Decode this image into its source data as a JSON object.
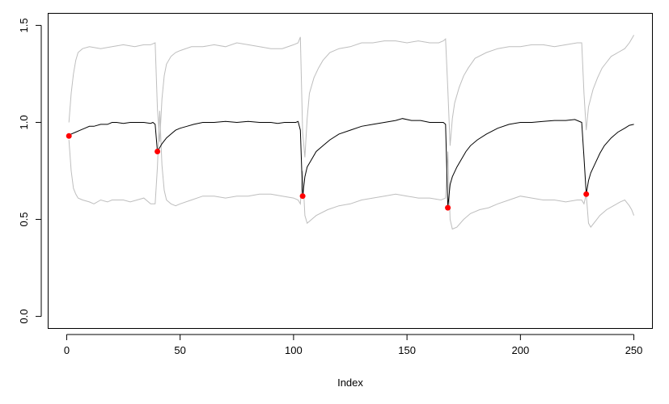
{
  "chart_data": {
    "type": "line",
    "title": "",
    "xlabel": "Index",
    "ylabel": "",
    "xlim": [
      -8,
      258
    ],
    "ylim": [
      -0.06,
      1.56
    ],
    "grid": false,
    "legend": "none",
    "x_ticks": [
      {
        "value": 0,
        "label": "0"
      },
      {
        "value": 50,
        "label": "50"
      },
      {
        "value": 100,
        "label": "100"
      },
      {
        "value": 150,
        "label": "150"
      },
      {
        "value": 200,
        "label": "200"
      },
      {
        "value": 250,
        "label": "250"
      }
    ],
    "y_ticks": [
      {
        "value": 0.0,
        "label": "0.0"
      },
      {
        "value": 0.5,
        "label": "0.5"
      },
      {
        "value": 1.0,
        "label": "1.0"
      },
      {
        "value": 1.5,
        "label": "1.5"
      }
    ],
    "colors": {
      "mean_line": "#000000",
      "band_lines": "#bebebe",
      "points": "#ff0000",
      "axes": "#000000"
    },
    "series": [
      {
        "role": "mean",
        "points": [
          [
            1,
            0.93
          ],
          [
            2,
            0.94
          ],
          [
            4,
            0.95
          ],
          [
            6,
            0.96
          ],
          [
            8,
            0.97
          ],
          [
            10,
            0.98
          ],
          [
            12,
            0.98
          ],
          [
            15,
            0.99
          ],
          [
            18,
            0.99
          ],
          [
            20,
            1.0
          ],
          [
            22,
            1.0
          ],
          [
            25,
            0.995
          ],
          [
            28,
            1.0
          ],
          [
            31,
            1.0
          ],
          [
            34,
            1.0
          ],
          [
            37,
            0.995
          ],
          [
            38,
            1.0
          ],
          [
            39,
            0.99
          ],
          [
            40,
            0.85
          ],
          [
            41,
            0.87
          ],
          [
            42,
            0.89
          ],
          [
            44,
            0.92
          ],
          [
            46,
            0.94
          ],
          [
            48,
            0.96
          ],
          [
            50,
            0.97
          ],
          [
            53,
            0.98
          ],
          [
            56,
            0.99
          ],
          [
            60,
            1.0
          ],
          [
            65,
            1.0
          ],
          [
            70,
            1.005
          ],
          [
            75,
            1.0
          ],
          [
            80,
            1.005
          ],
          [
            85,
            1.0
          ],
          [
            90,
            1.0
          ],
          [
            93,
            0.995
          ],
          [
            96,
            1.0
          ],
          [
            99,
            1.0
          ],
          [
            101,
            1.0
          ],
          [
            102,
            1.005
          ],
          [
            103,
            0.96
          ],
          [
            104,
            0.62
          ],
          [
            105,
            0.72
          ],
          [
            106,
            0.77
          ],
          [
            108,
            0.81
          ],
          [
            110,
            0.85
          ],
          [
            113,
            0.88
          ],
          [
            116,
            0.91
          ],
          [
            120,
            0.94
          ],
          [
            125,
            0.96
          ],
          [
            130,
            0.98
          ],
          [
            135,
            0.99
          ],
          [
            140,
            1.0
          ],
          [
            145,
            1.01
          ],
          [
            148,
            1.02
          ],
          [
            152,
            1.01
          ],
          [
            156,
            1.01
          ],
          [
            160,
            1.0
          ],
          [
            163,
            1.0
          ],
          [
            166,
            1.0
          ],
          [
            167,
            0.99
          ],
          [
            168,
            0.56
          ],
          [
            169,
            0.68
          ],
          [
            170,
            0.72
          ],
          [
            172,
            0.77
          ],
          [
            174,
            0.81
          ],
          [
            176,
            0.85
          ],
          [
            178,
            0.88
          ],
          [
            181,
            0.91
          ],
          [
            185,
            0.94
          ],
          [
            190,
            0.97
          ],
          [
            195,
            0.99
          ],
          [
            200,
            1.0
          ],
          [
            205,
            1.0
          ],
          [
            210,
            1.005
          ],
          [
            215,
            1.01
          ],
          [
            220,
            1.01
          ],
          [
            224,
            1.015
          ],
          [
            227,
            1.0
          ],
          [
            228,
            0.82
          ],
          [
            229,
            0.63
          ],
          [
            230,
            0.7
          ],
          [
            231,
            0.74
          ],
          [
            233,
            0.79
          ],
          [
            235,
            0.84
          ],
          [
            237,
            0.88
          ],
          [
            240,
            0.92
          ],
          [
            243,
            0.95
          ],
          [
            246,
            0.97
          ],
          [
            248,
            0.985
          ],
          [
            250,
            0.99
          ]
        ]
      },
      {
        "role": "upper",
        "points": [
          [
            1,
            1.0
          ],
          [
            2,
            1.15
          ],
          [
            3,
            1.25
          ],
          [
            4,
            1.32
          ],
          [
            5,
            1.36
          ],
          [
            7,
            1.38
          ],
          [
            10,
            1.39
          ],
          [
            15,
            1.38
          ],
          [
            20,
            1.39
          ],
          [
            25,
            1.4
          ],
          [
            30,
            1.39
          ],
          [
            34,
            1.4
          ],
          [
            37,
            1.4
          ],
          [
            39,
            1.41
          ],
          [
            40,
            1.07
          ],
          [
            41,
            0.9
          ],
          [
            42,
            1.12
          ],
          [
            43,
            1.24
          ],
          [
            44,
            1.3
          ],
          [
            46,
            1.34
          ],
          [
            48,
            1.36
          ],
          [
            50,
            1.37
          ],
          [
            55,
            1.39
          ],
          [
            60,
            1.39
          ],
          [
            65,
            1.4
          ],
          [
            70,
            1.39
          ],
          [
            75,
            1.41
          ],
          [
            80,
            1.4
          ],
          [
            85,
            1.39
          ],
          [
            90,
            1.38
          ],
          [
            95,
            1.38
          ],
          [
            100,
            1.4
          ],
          [
            102,
            1.41
          ],
          [
            103,
            1.44
          ],
          [
            104,
            0.95
          ],
          [
            105,
            0.82
          ],
          [
            106,
            1.02
          ],
          [
            107,
            1.15
          ],
          [
            109,
            1.23
          ],
          [
            111,
            1.28
          ],
          [
            113,
            1.32
          ],
          [
            116,
            1.36
          ],
          [
            120,
            1.38
          ],
          [
            125,
            1.39
          ],
          [
            130,
            1.41
          ],
          [
            135,
            1.41
          ],
          [
            140,
            1.42
          ],
          [
            145,
            1.42
          ],
          [
            150,
            1.41
          ],
          [
            155,
            1.42
          ],
          [
            160,
            1.41
          ],
          [
            164,
            1.41
          ],
          [
            166,
            1.42
          ],
          [
            167,
            1.43
          ],
          [
            168,
            1.17
          ],
          [
            169,
            0.88
          ],
          [
            170,
            1.02
          ],
          [
            171,
            1.1
          ],
          [
            173,
            1.18
          ],
          [
            175,
            1.24
          ],
          [
            177,
            1.28
          ],
          [
            180,
            1.33
          ],
          [
            185,
            1.36
          ],
          [
            190,
            1.38
          ],
          [
            195,
            1.39
          ],
          [
            200,
            1.39
          ],
          [
            205,
            1.4
          ],
          [
            210,
            1.4
          ],
          [
            215,
            1.39
          ],
          [
            220,
            1.4
          ],
          [
            225,
            1.41
          ],
          [
            227,
            1.41
          ],
          [
            228,
            1.15
          ],
          [
            229,
            0.96
          ],
          [
            230,
            1.08
          ],
          [
            232,
            1.17
          ],
          [
            234,
            1.23
          ],
          [
            236,
            1.28
          ],
          [
            238,
            1.31
          ],
          [
            240,
            1.34
          ],
          [
            243,
            1.36
          ],
          [
            246,
            1.38
          ],
          [
            248,
            1.41
          ],
          [
            249,
            1.43
          ],
          [
            250,
            1.45
          ]
        ]
      },
      {
        "role": "lower",
        "points": [
          [
            1,
            0.91
          ],
          [
            2,
            0.75
          ],
          [
            3,
            0.66
          ],
          [
            4,
            0.63
          ],
          [
            5,
            0.61
          ],
          [
            7,
            0.6
          ],
          [
            10,
            0.59
          ],
          [
            12,
            0.58
          ],
          [
            15,
            0.6
          ],
          [
            18,
            0.59
          ],
          [
            20,
            0.6
          ],
          [
            25,
            0.6
          ],
          [
            28,
            0.59
          ],
          [
            31,
            0.6
          ],
          [
            34,
            0.61
          ],
          [
            37,
            0.58
          ],
          [
            39,
            0.58
          ],
          [
            40,
            0.77
          ],
          [
            41,
            1.06
          ],
          [
            42,
            0.78
          ],
          [
            43,
            0.65
          ],
          [
            44,
            0.6
          ],
          [
            46,
            0.58
          ],
          [
            48,
            0.57
          ],
          [
            50,
            0.58
          ],
          [
            55,
            0.6
          ],
          [
            60,
            0.62
          ],
          [
            65,
            0.62
          ],
          [
            70,
            0.61
          ],
          [
            75,
            0.62
          ],
          [
            80,
            0.62
          ],
          [
            85,
            0.63
          ],
          [
            90,
            0.63
          ],
          [
            95,
            0.62
          ],
          [
            100,
            0.61
          ],
          [
            102,
            0.6
          ],
          [
            103,
            0.58
          ],
          [
            104,
            0.75
          ],
          [
            105,
            0.52
          ],
          [
            106,
            0.48
          ],
          [
            108,
            0.5
          ],
          [
            110,
            0.52
          ],
          [
            115,
            0.55
          ],
          [
            120,
            0.57
          ],
          [
            125,
            0.58
          ],
          [
            130,
            0.6
          ],
          [
            135,
            0.61
          ],
          [
            140,
            0.62
          ],
          [
            145,
            0.63
          ],
          [
            150,
            0.62
          ],
          [
            155,
            0.61
          ],
          [
            160,
            0.61
          ],
          [
            165,
            0.6
          ],
          [
            167,
            0.61
          ],
          [
            168,
            0.85
          ],
          [
            169,
            0.5
          ],
          [
            170,
            0.45
          ],
          [
            172,
            0.46
          ],
          [
            175,
            0.5
          ],
          [
            178,
            0.53
          ],
          [
            182,
            0.55
          ],
          [
            186,
            0.56
          ],
          [
            190,
            0.58
          ],
          [
            195,
            0.6
          ],
          [
            200,
            0.62
          ],
          [
            205,
            0.61
          ],
          [
            210,
            0.6
          ],
          [
            215,
            0.6
          ],
          [
            220,
            0.59
          ],
          [
            225,
            0.6
          ],
          [
            227,
            0.6
          ],
          [
            228,
            0.58
          ],
          [
            229,
            0.63
          ],
          [
            230,
            0.48
          ],
          [
            231,
            0.46
          ],
          [
            233,
            0.49
          ],
          [
            235,
            0.52
          ],
          [
            238,
            0.55
          ],
          [
            241,
            0.57
          ],
          [
            244,
            0.59
          ],
          [
            246,
            0.6
          ],
          [
            248,
            0.57
          ],
          [
            249,
            0.55
          ],
          [
            250,
            0.52
          ]
        ]
      }
    ],
    "highlight_points": [
      {
        "x": 1,
        "y": 0.93
      },
      {
        "x": 40,
        "y": 0.85
      },
      {
        "x": 104,
        "y": 0.62
      },
      {
        "x": 168,
        "y": 0.56
      },
      {
        "x": 229,
        "y": 0.63
      }
    ]
  }
}
